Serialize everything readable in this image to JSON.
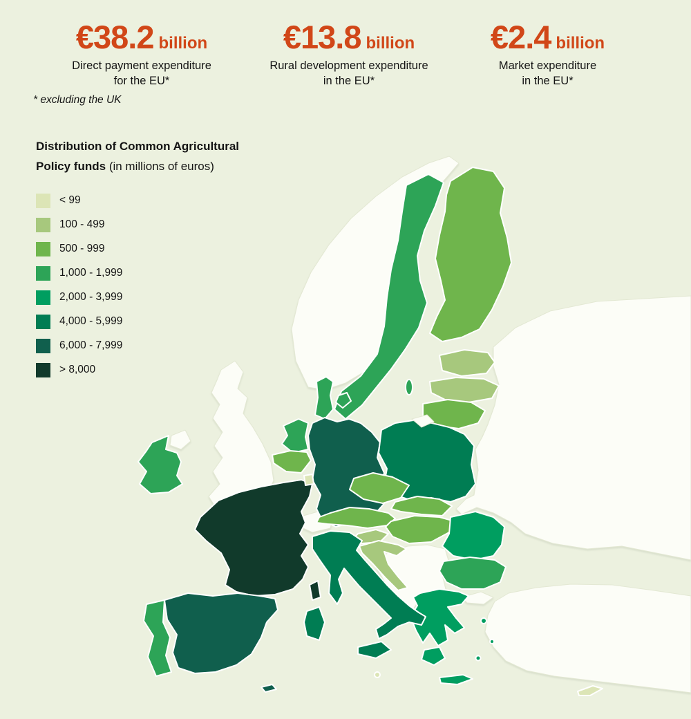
{
  "page": {
    "background": "#ecf1df",
    "non_eu_land": "#fcfdf7",
    "accent": "#d14718",
    "text_color": "#141414",
    "border_color": "#ffffff"
  },
  "stats": [
    {
      "value": "€38.2",
      "unit": "billion",
      "label_line1": "Direct payment expenditure",
      "label_line2": "for the EU*"
    },
    {
      "value": "€13.8",
      "unit": "billion",
      "label_line1": "Rural development expenditure",
      "label_line2": "in the EU*"
    },
    {
      "value": "€2.4",
      "unit": "billion",
      "label_line1": "Market expenditure",
      "label_line2": "in the EU*"
    }
  ],
  "footnote": "* excluding the UK",
  "legend": {
    "title_line1": "Distribution of Common Agricultural",
    "title_line2_bold": "Policy funds",
    "title_line2_regular": "(in millions of euros)"
  },
  "chart_data": {
    "type": "heatmap",
    "subtype": "choropleth_map",
    "region": "Europe",
    "title": "Distribution of Common Agricultural Policy funds (in millions of euros)",
    "legend_position": "left",
    "classes": [
      {
        "label": "< 99",
        "color": "#dce5b6"
      },
      {
        "label": "100 - 499",
        "color": "#a7c87d"
      },
      {
        "label": "500 - 999",
        "color": "#6fb54c"
      },
      {
        "label": "1,000 - 1,999",
        "color": "#2da457"
      },
      {
        "label": "2,000 - 3,999",
        "color": "#009e60"
      },
      {
        "label": "4,000 - 5,999",
        "color": "#007d53"
      },
      {
        "label": "6,000 - 7,999",
        "color": "#105f4d"
      },
      {
        "label": "> 8,000",
        "color": "#113a2b"
      }
    ],
    "countries": [
      {
        "id": "france",
        "name": "France",
        "class": "> 8,000"
      },
      {
        "id": "spain",
        "name": "Spain",
        "class": "6,000 - 7,999"
      },
      {
        "id": "germany",
        "name": "Germany",
        "class": "6,000 - 7,999"
      },
      {
        "id": "italy",
        "name": "Italy",
        "class": "4,000 - 5,999"
      },
      {
        "id": "poland",
        "name": "Poland",
        "class": "4,000 - 5,999"
      },
      {
        "id": "romania",
        "name": "Romania",
        "class": "2,000 - 3,999"
      },
      {
        "id": "greece",
        "name": "Greece",
        "class": "2,000 - 3,999"
      },
      {
        "id": "ireland",
        "name": "Ireland",
        "class": "1,000 - 1,999"
      },
      {
        "id": "portugal",
        "name": "Portugal",
        "class": "1,000 - 1,999"
      },
      {
        "id": "denmark",
        "name": "Denmark",
        "class": "1,000 - 1,999"
      },
      {
        "id": "sweden",
        "name": "Sweden",
        "class": "1,000 - 1,999"
      },
      {
        "id": "netherlands",
        "name": "Netherlands",
        "class": "1,000 - 1,999"
      },
      {
        "id": "bulgaria",
        "name": "Bulgaria",
        "class": "1,000 - 1,999"
      },
      {
        "id": "finland",
        "name": "Finland",
        "class": "500 - 999"
      },
      {
        "id": "belgium",
        "name": "Belgium",
        "class": "500 - 999"
      },
      {
        "id": "czechia",
        "name": "Czechia",
        "class": "500 - 999"
      },
      {
        "id": "austria",
        "name": "Austria",
        "class": "500 - 999"
      },
      {
        "id": "slovakia",
        "name": "Slovakia",
        "class": "500 - 999"
      },
      {
        "id": "hungary",
        "name": "Hungary",
        "class": "500 - 999"
      },
      {
        "id": "lithuania",
        "name": "Lithuania",
        "class": "500 - 999"
      },
      {
        "id": "latvia",
        "name": "Latvia",
        "class": "100 - 499"
      },
      {
        "id": "estonia",
        "name": "Estonia",
        "class": "100 - 499"
      },
      {
        "id": "croatia",
        "name": "Croatia",
        "class": "100 - 499"
      },
      {
        "id": "slovenia",
        "name": "Slovenia",
        "class": "100 - 499"
      },
      {
        "id": "luxembourg",
        "name": "Luxembourg",
        "class": "< 99"
      },
      {
        "id": "cyprus",
        "name": "Cyprus",
        "class": "< 99"
      },
      {
        "id": "malta",
        "name": "Malta",
        "class": "< 99"
      }
    ]
  }
}
